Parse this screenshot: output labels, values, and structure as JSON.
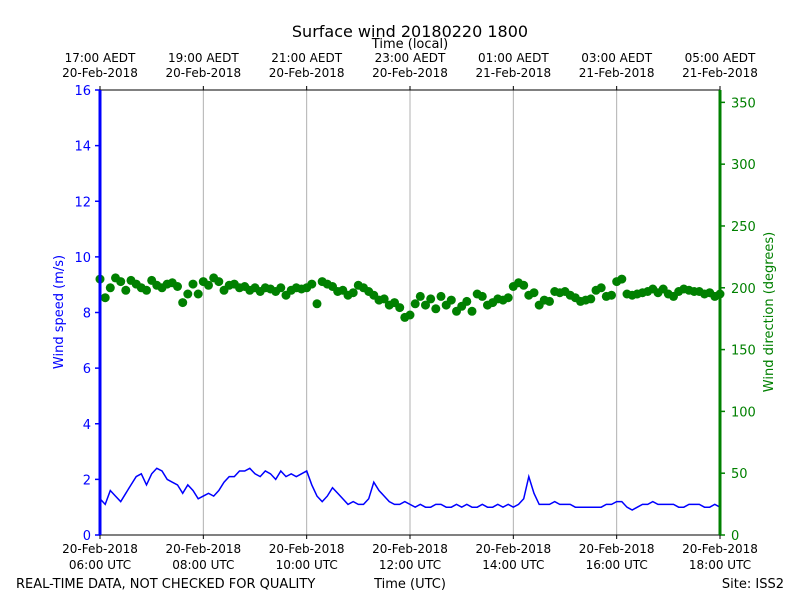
{
  "chart_data": {
    "type": "line",
    "title": "Surface wind 20180220 1800",
    "top_axis_label": "Time (local)",
    "xlabel": "Time (UTC)",
    "ylabel_left": "Wind speed (m/s)",
    "ylabel_right": "Wind direction (degrees)",
    "xlim_hours_utc": [
      6,
      18
    ],
    "ylim_left": [
      0,
      16
    ],
    "ylim_right": [
      0,
      360
    ],
    "grid": "vertical",
    "bottom_ticks": [
      {
        "hour": 6,
        "line1": "20-Feb-2018",
        "line2": "06:00 UTC"
      },
      {
        "hour": 8,
        "line1": "20-Feb-2018",
        "line2": "08:00 UTC"
      },
      {
        "hour": 10,
        "line1": "20-Feb-2018",
        "line2": "10:00 UTC"
      },
      {
        "hour": 12,
        "line1": "20-Feb-2018",
        "line2": "12:00 UTC"
      },
      {
        "hour": 14,
        "line1": "20-Feb-2018",
        "line2": "14:00 UTC"
      },
      {
        "hour": 16,
        "line1": "20-Feb-2018",
        "line2": "16:00 UTC"
      },
      {
        "hour": 18,
        "line1": "20-Feb-2018",
        "line2": "18:00 UTC"
      }
    ],
    "top_ticks": [
      {
        "hour": 6,
        "line1": "17:00 AEDT",
        "line2": "20-Feb-2018"
      },
      {
        "hour": 8,
        "line1": "19:00 AEDT",
        "line2": "20-Feb-2018"
      },
      {
        "hour": 10,
        "line1": "21:00 AEDT",
        "line2": "20-Feb-2018"
      },
      {
        "hour": 12,
        "line1": "23:00 AEDT",
        "line2": "20-Feb-2018"
      },
      {
        "hour": 14,
        "line1": "01:00 AEDT",
        "line2": "21-Feb-2018"
      },
      {
        "hour": 16,
        "line1": "03:00 AEDT",
        "line2": "21-Feb-2018"
      },
      {
        "hour": 18,
        "line1": "05:00 AEDT",
        "line2": "21-Feb-2018"
      }
    ],
    "left_ticks": [
      "0",
      "2",
      "4",
      "6",
      "8",
      "10",
      "12",
      "14",
      "16"
    ],
    "right_ticks": [
      "0",
      "50",
      "100",
      "150",
      "200",
      "250",
      "300",
      "350"
    ],
    "series": [
      {
        "axis": "left",
        "style": "line",
        "color": "#0000ff",
        "x": [
          6.0,
          6.1,
          6.2,
          6.3,
          6.4,
          6.5,
          6.6,
          6.7,
          6.8,
          6.9,
          7.0,
          7.1,
          7.2,
          7.3,
          7.4,
          7.5,
          7.6,
          7.7,
          7.8,
          7.9,
          8.0,
          8.1,
          8.2,
          8.3,
          8.4,
          8.5,
          8.6,
          8.7,
          8.8,
          8.9,
          9.0,
          9.1,
          9.2,
          9.3,
          9.4,
          9.5,
          9.6,
          9.7,
          9.8,
          9.9,
          10.0,
          10.1,
          10.2,
          10.3,
          10.4,
          10.5,
          10.6,
          10.7,
          10.8,
          10.9,
          11.0,
          11.1,
          11.2,
          11.3,
          11.4,
          11.5,
          11.6,
          11.7,
          11.8,
          11.9,
          12.0,
          12.1,
          12.2,
          12.3,
          12.4,
          12.5,
          12.6,
          12.7,
          12.8,
          12.9,
          13.0,
          13.1,
          13.2,
          13.3,
          13.4,
          13.5,
          13.6,
          13.7,
          13.8,
          13.9,
          14.0,
          14.1,
          14.2,
          14.3,
          14.4,
          14.5,
          14.6,
          14.7,
          14.8,
          14.9,
          15.0,
          15.1,
          15.2,
          15.3,
          15.4,
          15.5,
          15.6,
          15.7,
          15.8,
          15.9,
          16.0,
          16.1,
          16.2,
          16.3,
          16.4,
          16.5,
          16.6,
          16.7,
          16.8,
          16.9,
          17.0,
          17.1,
          17.2,
          17.3,
          17.4,
          17.5,
          17.6,
          17.7,
          17.8,
          17.9,
          18.0
        ],
        "values": [
          1.3,
          1.1,
          1.6,
          1.4,
          1.2,
          1.5,
          1.8,
          2.1,
          2.2,
          1.8,
          2.2,
          2.4,
          2.3,
          2.0,
          1.9,
          1.8,
          1.5,
          1.8,
          1.6,
          1.3,
          1.4,
          1.5,
          1.4,
          1.6,
          1.9,
          2.1,
          2.1,
          2.3,
          2.3,
          2.4,
          2.2,
          2.1,
          2.3,
          2.2,
          2.0,
          2.3,
          2.1,
          2.2,
          2.1,
          2.2,
          2.3,
          1.8,
          1.4,
          1.2,
          1.4,
          1.7,
          1.5,
          1.3,
          1.1,
          1.2,
          1.1,
          1.1,
          1.3,
          1.9,
          1.6,
          1.4,
          1.2,
          1.1,
          1.1,
          1.2,
          1.1,
          1.0,
          1.1,
          1.0,
          1.0,
          1.1,
          1.1,
          1.0,
          1.0,
          1.1,
          1.0,
          1.1,
          1.0,
          1.0,
          1.1,
          1.0,
          1.0,
          1.1,
          1.0,
          1.1,
          1.0,
          1.1,
          1.3,
          2.1,
          1.5,
          1.1,
          1.1,
          1.1,
          1.2,
          1.1,
          1.1,
          1.1,
          1.0,
          1.0,
          1.0,
          1.0,
          1.0,
          1.0,
          1.1,
          1.1,
          1.2,
          1.2,
          1.0,
          0.9,
          1.0,
          1.1,
          1.1,
          1.2,
          1.1,
          1.1,
          1.1,
          1.1,
          1.0,
          1.0,
          1.1,
          1.1,
          1.1,
          1.0,
          1.0,
          1.1,
          1.0
        ]
      },
      {
        "axis": "right",
        "style": "scatter",
        "color": "#008000",
        "x": [
          6.0,
          6.1,
          6.2,
          6.3,
          6.4,
          6.5,
          6.6,
          6.7,
          6.8,
          6.9,
          7.0,
          7.1,
          7.2,
          7.3,
          7.4,
          7.5,
          7.6,
          7.7,
          7.8,
          7.9,
          8.0,
          8.1,
          8.2,
          8.3,
          8.4,
          8.5,
          8.6,
          8.7,
          8.8,
          8.9,
          9.0,
          9.1,
          9.2,
          9.3,
          9.4,
          9.5,
          9.6,
          9.7,
          9.8,
          9.9,
          10.0,
          10.1,
          10.2,
          10.3,
          10.4,
          10.5,
          10.6,
          10.7,
          10.8,
          10.9,
          11.0,
          11.1,
          11.2,
          11.3,
          11.4,
          11.5,
          11.6,
          11.7,
          11.8,
          11.9,
          12.0,
          12.1,
          12.2,
          12.3,
          12.4,
          12.5,
          12.6,
          12.7,
          12.8,
          12.9,
          13.0,
          13.1,
          13.2,
          13.3,
          13.4,
          13.5,
          13.6,
          13.7,
          13.8,
          13.9,
          14.0,
          14.1,
          14.2,
          14.3,
          14.4,
          14.5,
          14.6,
          14.7,
          14.8,
          14.9,
          15.0,
          15.1,
          15.2,
          15.3,
          15.4,
          15.5,
          15.6,
          15.7,
          15.8,
          15.9,
          16.0,
          16.1,
          16.2,
          16.3,
          16.4,
          16.5,
          16.6,
          16.7,
          16.8,
          16.9,
          17.0,
          17.1,
          17.2,
          17.3,
          17.4,
          17.5,
          17.6,
          17.7,
          17.8,
          17.9,
          18.0
        ],
        "values": [
          207,
          192,
          200,
          208,
          205,
          198,
          206,
          203,
          200,
          198,
          206,
          202,
          200,
          203,
          204,
          201,
          188,
          195,
          203,
          195,
          205,
          202,
          208,
          205,
          198,
          202,
          203,
          200,
          201,
          198,
          200,
          197,
          200,
          199,
          197,
          200,
          194,
          198,
          200,
          199,
          200,
          203,
          187,
          205,
          203,
          201,
          197,
          198,
          194,
          196,
          202,
          200,
          197,
          194,
          190,
          191,
          186,
          188,
          184,
          176,
          178,
          187,
          193,
          186,
          191,
          183,
          193,
          186,
          190,
          181,
          185,
          189,
          181,
          195,
          193,
          186,
          188,
          191,
          190,
          192,
          201,
          204,
          202,
          194,
          196,
          186,
          190,
          189,
          197,
          196,
          197,
          194,
          192,
          189,
          190,
          191,
          198,
          200,
          193,
          194,
          205,
          207,
          195,
          194,
          195,
          196,
          197,
          199,
          196,
          199,
          195,
          193,
          197,
          199,
          198,
          197,
          197,
          195,
          196,
          193,
          195
        ]
      }
    ],
    "annotations": {
      "bottom_left": "REAL-TIME DATA, NOT CHECKED FOR QUALITY",
      "bottom_right": "Site: ISS2"
    }
  }
}
